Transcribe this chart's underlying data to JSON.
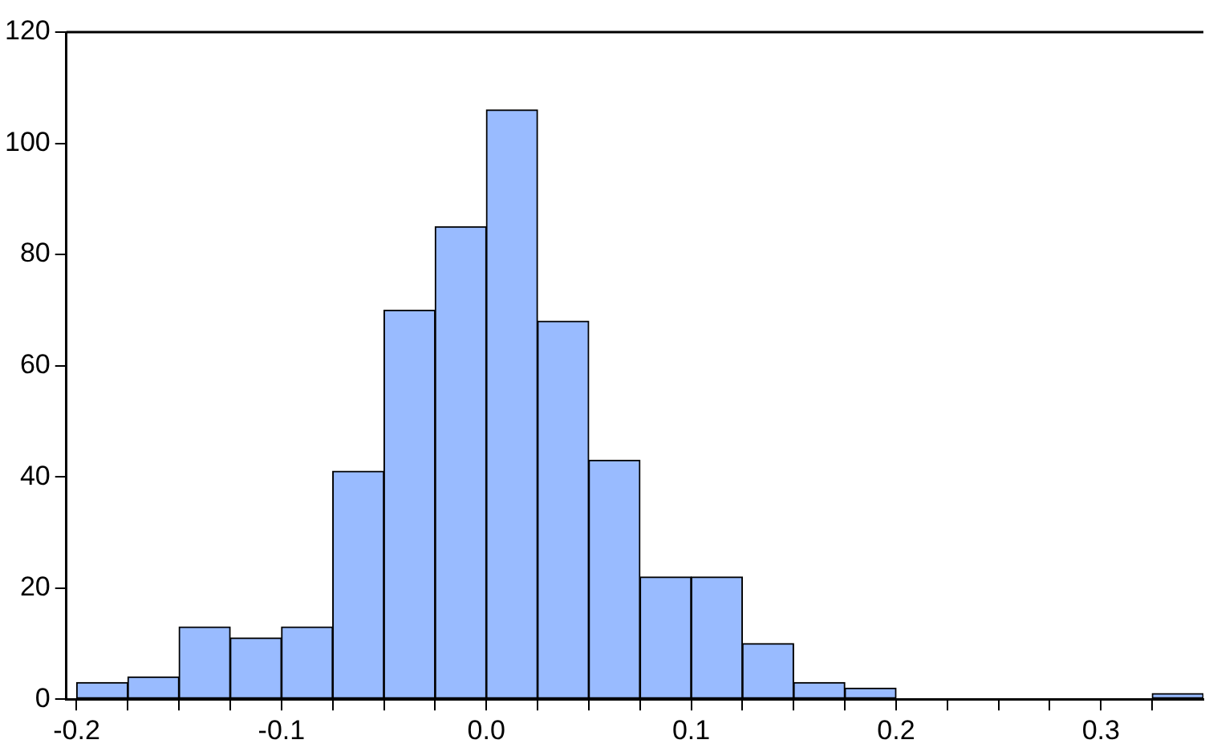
{
  "chart_data": {
    "type": "histogram",
    "bins": [
      -0.2,
      -0.175,
      -0.15,
      -0.125,
      -0.1,
      -0.075,
      -0.05,
      -0.025,
      0,
      0.025,
      0.05,
      0.075,
      0.1,
      0.125,
      0.15,
      0.175,
      0.2,
      0.225,
      0.25,
      0.275,
      0.3,
      0.325,
      0.35
    ],
    "values": [
      3,
      4,
      13,
      11,
      13,
      41,
      70,
      85,
      106,
      68,
      43,
      22,
      22,
      10,
      3,
      2,
      0,
      0,
      0,
      0,
      0,
      1
    ],
    "color": "#99bbff",
    "xlim": [
      -0.205,
      0.35
    ],
    "xticks": [
      {
        "value": -0.2,
        "label": "-0.2"
      },
      {
        "value": -0.175,
        "label": null
      },
      {
        "value": -0.15,
        "label": null
      },
      {
        "value": -0.125,
        "label": null
      },
      {
        "value": -0.1,
        "label": "-0.1"
      },
      {
        "value": -0.075,
        "label": null
      },
      {
        "value": -0.05,
        "label": null
      },
      {
        "value": -0.025,
        "label": null
      },
      {
        "value": 0,
        "label": "0.0"
      },
      {
        "value": 0.025,
        "label": null
      },
      {
        "value": 0.05,
        "label": null
      },
      {
        "value": 0.075,
        "label": null
      },
      {
        "value": 0.1,
        "label": "0.1"
      },
      {
        "value": 0.125,
        "label": null
      },
      {
        "value": 0.15,
        "label": null
      },
      {
        "value": 0.175,
        "label": null
      },
      {
        "value": 0.2,
        "label": "0.2"
      },
      {
        "value": 0.225,
        "label": null
      },
      {
        "value": 0.25,
        "label": null
      },
      {
        "value": 0.275,
        "label": null
      },
      {
        "value": 0.3,
        "label": "0.3"
      },
      {
        "value": 0.325,
        "label": null
      }
    ],
    "ylim": [
      0,
      120
    ],
    "yticks": [
      0,
      20,
      40,
      60,
      80,
      100,
      120
    ],
    "grid": false,
    "legend": false
  }
}
